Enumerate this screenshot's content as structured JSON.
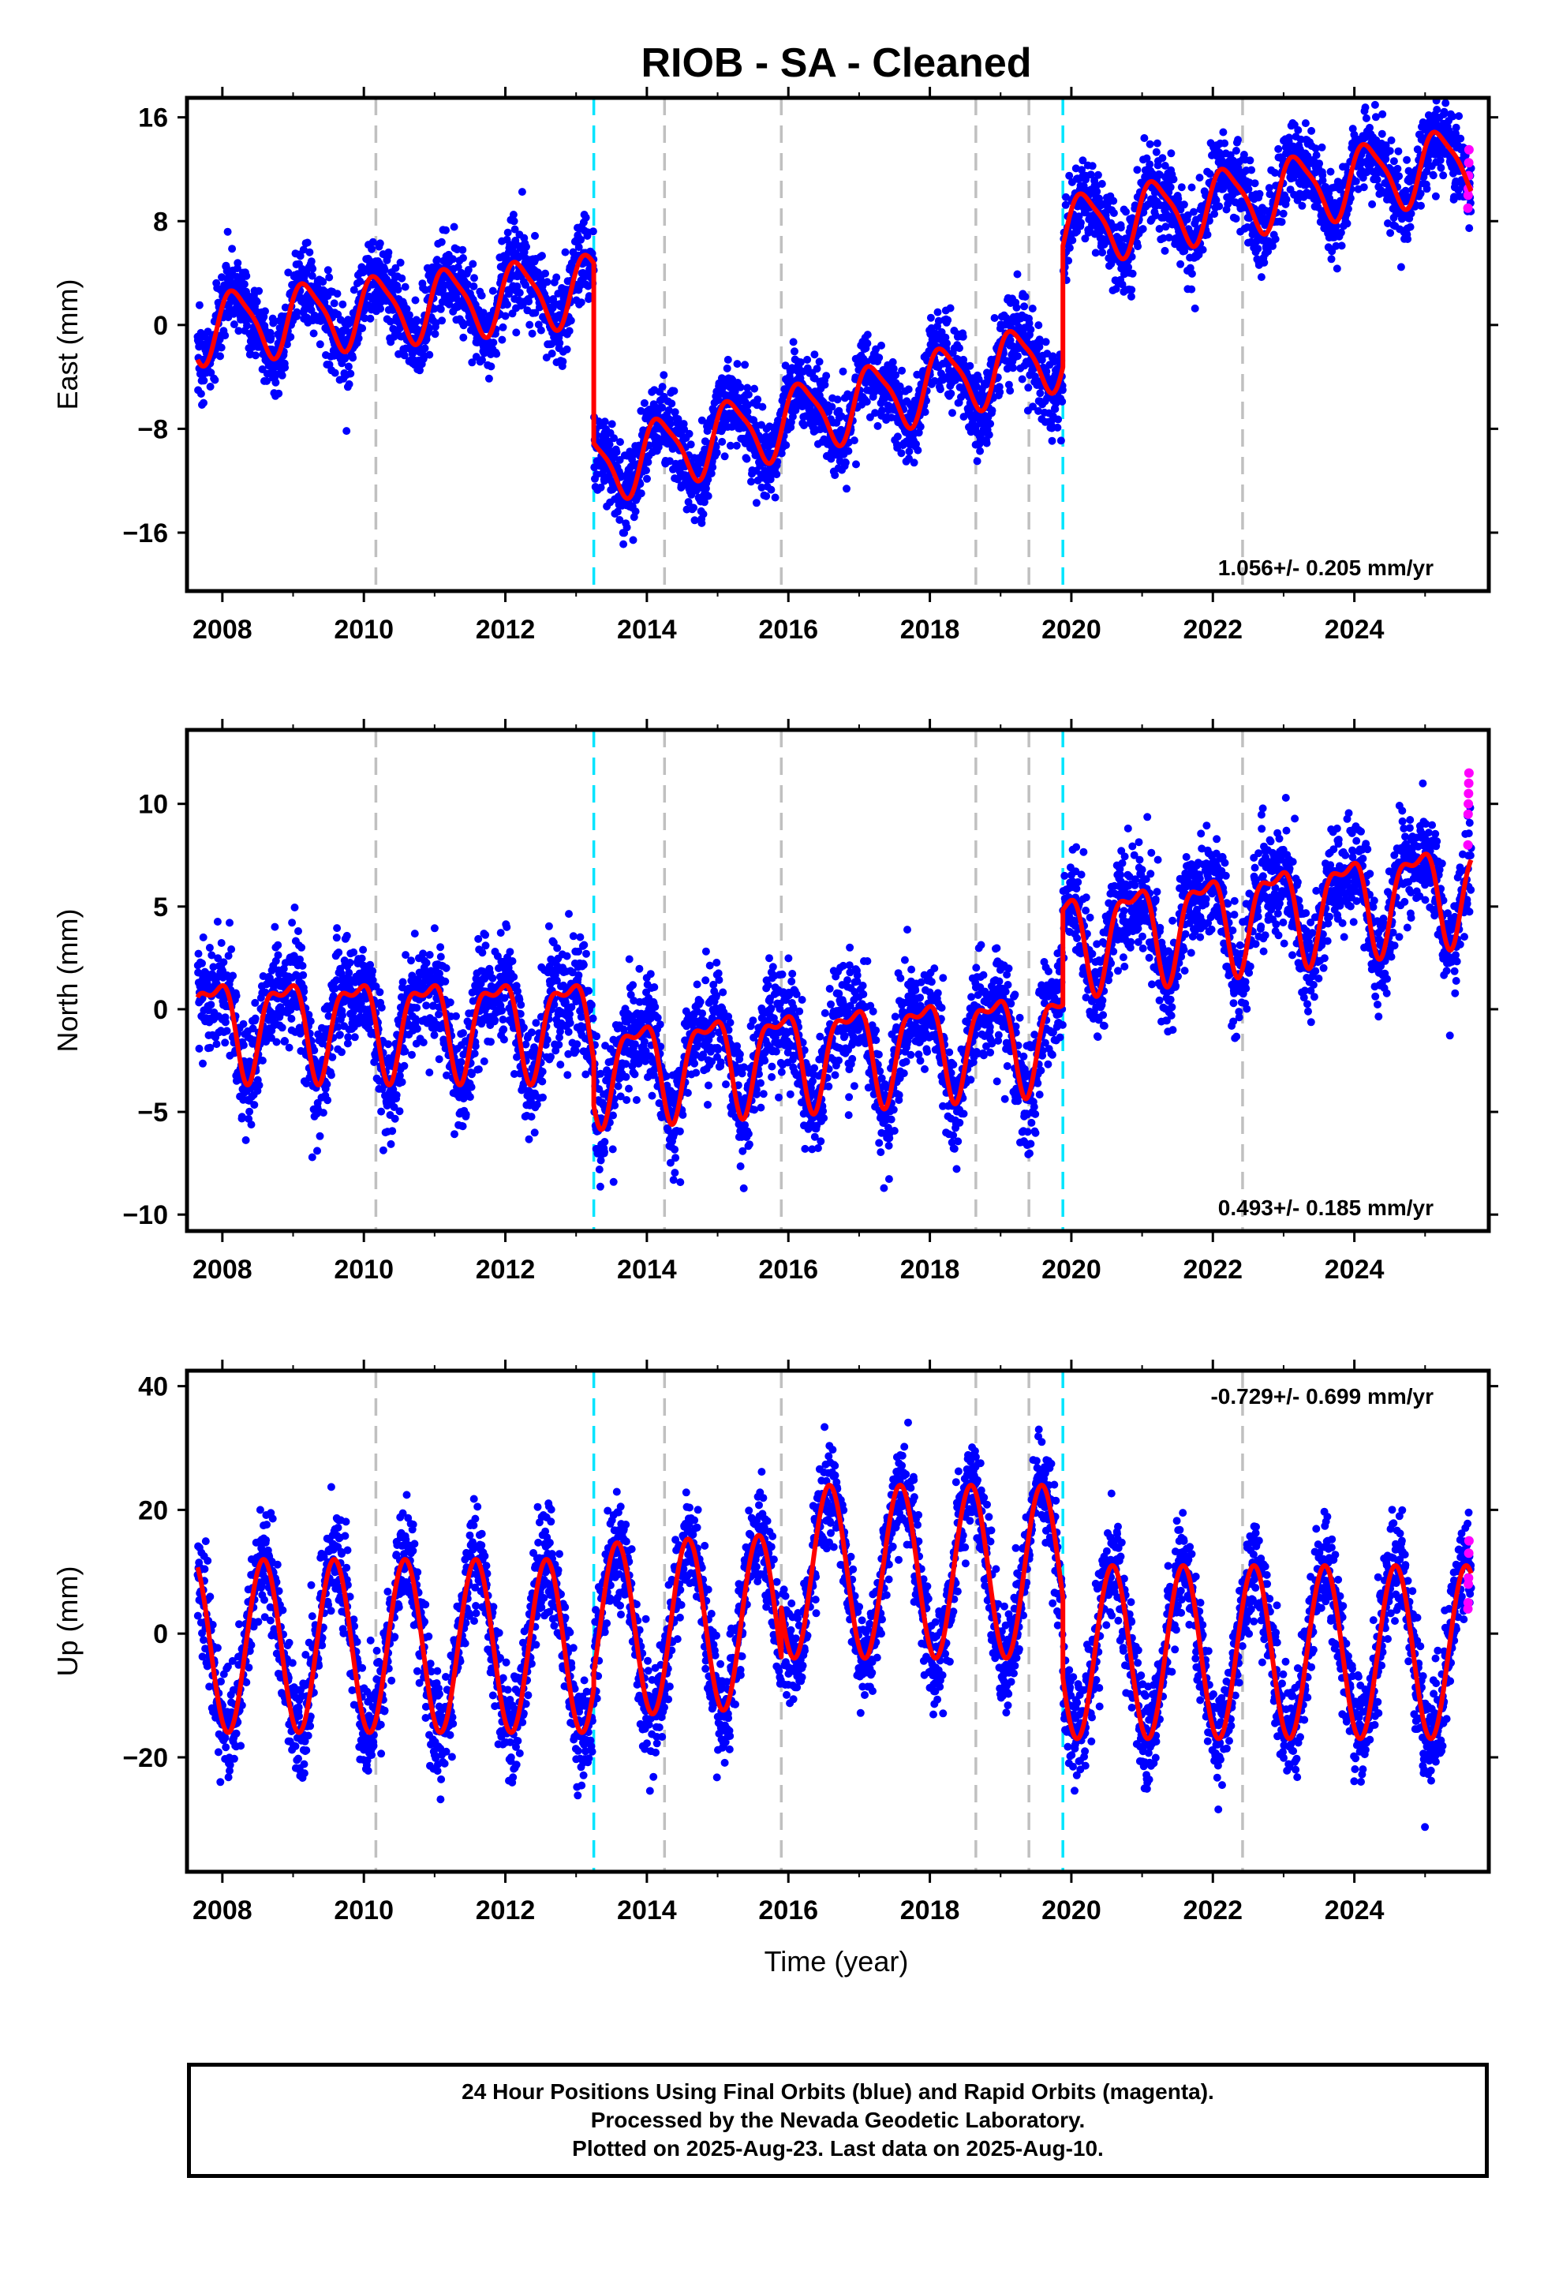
{
  "title": "RIOB  - SA - Cleaned",
  "xlabel": "Time (year)",
  "footer": [
    "24 Hour Positions Using Final Orbits (blue) and Rapid Orbits (magenta).",
    "Processed by the Nevada Geodetic Laboratory.",
    "Plotted on 2025-Aug-23. Last data on 2025-Aug-10."
  ],
  "colors": {
    "final_orbits": "#0000ff",
    "rapid_orbits": "#ff00ff",
    "model": "#ff0000",
    "antenna_change": "#00e5ff",
    "equipment_change": "#c0c0c0"
  },
  "chart_data": [
    {
      "type": "scatter",
      "component": "east",
      "ylabel": "East (mm)",
      "ylim": [
        -20.5,
        17.5
      ],
      "yticks": [
        16,
        8,
        0,
        -8,
        -16
      ],
      "ytick_labels": [
        "16",
        "8",
        "0",
        "−8",
        "−16"
      ],
      "xlim": [
        2007.5,
        2025.9
      ],
      "xticks": [
        2008,
        2010,
        2012,
        2014,
        2016,
        2018,
        2020,
        2022,
        2024
      ],
      "xtick_labels": [
        "2008",
        "2010",
        "2012",
        "2014",
        "2016",
        "2018",
        "2020",
        "2022",
        "2024"
      ],
      "rate": "1.056+/- 0.205 mm/yr",
      "rate_position": "bottom-right",
      "antenna_changes": [
        2013.25,
        2019.88
      ],
      "equipment_changes": [
        2010.17,
        2014.25,
        2015.9,
        2018.65,
        2019.4,
        2022.42
      ],
      "model": {
        "segments": [
          {
            "start": 2007.65,
            "end": 2013.25,
            "offset": -0.2,
            "rate": 0.55
          },
          {
            "start": 2013.25,
            "end": 2019.88,
            "offset": -11.0,
            "rate": 1.35
          },
          {
            "start": 2019.88,
            "end": 2025.65,
            "offset": 7.3,
            "rate": 0.95
          }
        ],
        "annual_amplitude": 2.6,
        "annual_phase": 0.35,
        "semiannual_amplitude": 0.6,
        "semiannual_phase": 1.2
      },
      "scatter_sd": 1.6,
      "rapid_values": [
        13.5,
        12.5,
        11.5,
        10.5,
        10.0,
        9.0
      ]
    },
    {
      "type": "scatter",
      "component": "north",
      "ylabel": "North (mm)",
      "ylim": [
        -10.8,
        13.6
      ],
      "yticks": [
        10,
        5,
        0,
        -5,
        -10
      ],
      "ytick_labels": [
        "10",
        "5",
        "0",
        "−5",
        "−10"
      ],
      "xlim": [
        2007.5,
        2025.9
      ],
      "xticks": [
        2008,
        2010,
        2012,
        2014,
        2016,
        2018,
        2020,
        2022,
        2024
      ],
      "xtick_labels": [
        "2008",
        "2010",
        "2012",
        "2014",
        "2016",
        "2018",
        "2020",
        "2022",
        "2024"
      ],
      "rate": "0.493+/- 0.185 mm/yr",
      "rate_position": "bottom-right",
      "antenna_changes": [
        2013.25,
        2019.88
      ],
      "equipment_changes": [
        2010.17,
        2014.25,
        2015.9,
        2018.65,
        2019.4,
        2022.42
      ],
      "model": {
        "segments": [
          {
            "start": 2007.65,
            "end": 2013.25,
            "offset": -0.6,
            "rate": 0.0
          },
          {
            "start": 2013.25,
            "end": 2019.88,
            "offset": -2.8,
            "rate": 0.25
          },
          {
            "start": 2019.88,
            "end": 2025.65,
            "offset": 3.5,
            "rate": 0.45
          }
        ],
        "annual_amplitude": 2.2,
        "annual_phase": 2.4,
        "semiannual_amplitude": 0.9,
        "semiannual_phase": 0.3
      },
      "scatter_sd": 1.3,
      "rapid_values": [
        11.5,
        11.0,
        10.5,
        10.0,
        9.5,
        8.0
      ]
    },
    {
      "type": "scatter",
      "component": "up",
      "ylabel": "Up (mm)",
      "ylim": [
        -38.5,
        42.5
      ],
      "yticks": [
        40,
        20,
        0,
        -20
      ],
      "ytick_labels": [
        "40",
        "20",
        "0",
        "−20"
      ],
      "xlim": [
        2007.5,
        2025.9
      ],
      "xticks": [
        2008,
        2010,
        2012,
        2014,
        2016,
        2018,
        2020,
        2022,
        2024
      ],
      "xtick_labels": [
        "2008",
        "2010",
        "2012",
        "2014",
        "2016",
        "2018",
        "2020",
        "2022",
        "2024"
      ],
      "rate": "-0.729+/- 0.699 mm/yr",
      "rate_position": "top-right",
      "antenna_changes": [
        2013.25,
        2019.88
      ],
      "equipment_changes": [
        2010.17,
        2014.25,
        2015.9,
        2018.65,
        2019.4,
        2022.42
      ],
      "model": {
        "segments": [
          {
            "start": 2007.65,
            "end": 2013.25,
            "offset": -2.0,
            "rate": 0.0
          },
          {
            "start": 2013.25,
            "end": 2015.9,
            "offset": 0.5,
            "rate": 0.6
          },
          {
            "start": 2015.9,
            "end": 2019.88,
            "offset": 10.0,
            "rate": 0.0
          },
          {
            "start": 2019.88,
            "end": 2025.65,
            "offset": -3.0,
            "rate": 0.0
          }
        ],
        "annual_amplitude": 14.0,
        "annual_phase": 4.2,
        "semiannual_amplitude": 0.0,
        "semiannual_phase": 0.0
      },
      "scatter_sd": 4.2,
      "rapid_values": [
        15.0,
        13.0,
        9.0,
        8.0,
        5.0,
        4.0
      ]
    }
  ]
}
